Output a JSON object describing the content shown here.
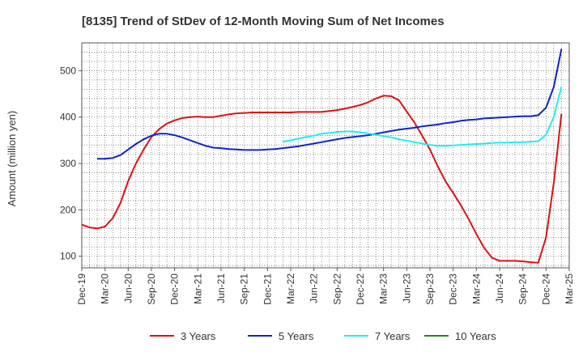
{
  "chart_data": {
    "type": "line",
    "title": "[8135]  Trend of StDev of 12-Month Moving Sum of Net Incomes",
    "xlabel": "",
    "ylabel": "Amount (million yen)",
    "ylim": [
      75,
      560
    ],
    "yticks": [
      100,
      200,
      300,
      400,
      500
    ],
    "x_start": "Dec-19",
    "xticks": [
      "Dec-19",
      "Mar-20",
      "Jun-20",
      "Sep-20",
      "Dec-20",
      "Mar-21",
      "Jun-21",
      "Sep-21",
      "Dec-21",
      "Mar-22",
      "Jun-22",
      "Sep-22",
      "Dec-22",
      "Mar-23",
      "Jun-23",
      "Sep-23",
      "Dec-23",
      "Mar-24",
      "Jun-24",
      "Sep-24",
      "Dec-24",
      "Mar-25"
    ],
    "grid": true,
    "legend_position": "bottom",
    "series": [
      {
        "name": "3 Years",
        "color": "#dd1111",
        "points": [
          [
            "Dec-19",
            168
          ],
          [
            "Jan-20",
            162
          ],
          [
            "Feb-20",
            160
          ],
          [
            "Mar-20",
            164
          ],
          [
            "Apr-20",
            182
          ],
          [
            "May-20",
            215
          ],
          [
            "Jun-20",
            262
          ],
          [
            "Jul-20",
            300
          ],
          [
            "Aug-20",
            330
          ],
          [
            "Sep-20",
            357
          ],
          [
            "Oct-20",
            374
          ],
          [
            "Nov-20",
            386
          ],
          [
            "Dec-20",
            393
          ],
          [
            "Jan-21",
            398
          ],
          [
            "Feb-21",
            400
          ],
          [
            "Mar-21",
            401
          ],
          [
            "Apr-21",
            400
          ],
          [
            "May-21",
            400
          ],
          [
            "Jun-21",
            403
          ],
          [
            "Jul-21",
            406
          ],
          [
            "Aug-21",
            408
          ],
          [
            "Sep-21",
            409
          ],
          [
            "Oct-21",
            410
          ],
          [
            "Nov-21",
            410
          ],
          [
            "Dec-21",
            410
          ],
          [
            "Jan-22",
            410
          ],
          [
            "Feb-22",
            410
          ],
          [
            "Mar-22",
            410
          ],
          [
            "Apr-22",
            411
          ],
          [
            "May-22",
            411
          ],
          [
            "Jun-22",
            411
          ],
          [
            "Jul-22",
            411
          ],
          [
            "Aug-22",
            413
          ],
          [
            "Sep-22",
            415
          ],
          [
            "Oct-22",
            418
          ],
          [
            "Nov-22",
            422
          ],
          [
            "Dec-22",
            426
          ],
          [
            "Jan-23",
            432
          ],
          [
            "Feb-23",
            440
          ],
          [
            "Mar-23",
            446
          ],
          [
            "Apr-23",
            445
          ],
          [
            "May-23",
            436
          ],
          [
            "Jun-23",
            412
          ],
          [
            "Jul-23",
            388
          ],
          [
            "Aug-23",
            360
          ],
          [
            "Sep-23",
            330
          ],
          [
            "Oct-23",
            294
          ],
          [
            "Nov-23",
            262
          ],
          [
            "Dec-23",
            236
          ],
          [
            "Jan-24",
            210
          ],
          [
            "Feb-24",
            180
          ],
          [
            "Mar-24",
            148
          ],
          [
            "Apr-24",
            118
          ],
          [
            "May-24",
            97
          ],
          [
            "Jun-24",
            90
          ],
          [
            "Jul-24",
            90
          ],
          [
            "Aug-24",
            90
          ],
          [
            "Sep-24",
            89
          ],
          [
            "Oct-24",
            87
          ],
          [
            "Nov-24",
            86
          ],
          [
            "Dec-24",
            140
          ],
          [
            "Jan-25",
            258
          ],
          [
            "Feb-25",
            407
          ]
        ]
      },
      {
        "name": "5 Years",
        "color": "#1122cc",
        "points": [
          [
            "Feb-20",
            310
          ],
          [
            "Mar-20",
            310
          ],
          [
            "Apr-20",
            312
          ],
          [
            "May-20",
            318
          ],
          [
            "Jun-20",
            330
          ],
          [
            "Jul-20",
            342
          ],
          [
            "Aug-20",
            352
          ],
          [
            "Sep-20",
            360
          ],
          [
            "Oct-20",
            364
          ],
          [
            "Nov-20",
            364
          ],
          [
            "Dec-20",
            361
          ],
          [
            "Jan-21",
            356
          ],
          [
            "Feb-21",
            350
          ],
          [
            "Mar-21",
            344
          ],
          [
            "Apr-21",
            338
          ],
          [
            "May-21",
            334
          ],
          [
            "Jun-21",
            333
          ],
          [
            "Jul-21",
            331
          ],
          [
            "Aug-21",
            330
          ],
          [
            "Sep-21",
            329
          ],
          [
            "Oct-21",
            329
          ],
          [
            "Nov-21",
            329
          ],
          [
            "Dec-21",
            330
          ],
          [
            "Jan-22",
            331
          ],
          [
            "Feb-22",
            333
          ],
          [
            "Mar-22",
            335
          ],
          [
            "Apr-22",
            337
          ],
          [
            "May-22",
            340
          ],
          [
            "Jun-22",
            343
          ],
          [
            "Jul-22",
            346
          ],
          [
            "Aug-22",
            349
          ],
          [
            "Sep-22",
            352
          ],
          [
            "Oct-22",
            355
          ],
          [
            "Nov-22",
            357
          ],
          [
            "Dec-22",
            359
          ],
          [
            "Jan-23",
            361
          ],
          [
            "Feb-23",
            364
          ],
          [
            "Mar-23",
            367
          ],
          [
            "Apr-23",
            370
          ],
          [
            "May-23",
            373
          ],
          [
            "Jun-23",
            375
          ],
          [
            "Jul-23",
            377
          ],
          [
            "Aug-23",
            380
          ],
          [
            "Sep-23",
            382
          ],
          [
            "Oct-23",
            384
          ],
          [
            "Nov-23",
            387
          ],
          [
            "Dec-23",
            389
          ],
          [
            "Jan-24",
            392
          ],
          [
            "Feb-24",
            394
          ],
          [
            "Mar-24",
            395
          ],
          [
            "Apr-24",
            397
          ],
          [
            "May-24",
            398
          ],
          [
            "Jun-24",
            399
          ],
          [
            "Jul-24",
            400
          ],
          [
            "Aug-24",
            401
          ],
          [
            "Sep-24",
            402
          ],
          [
            "Oct-24",
            402
          ],
          [
            "Nov-24",
            404
          ],
          [
            "Dec-24",
            420
          ],
          [
            "Jan-25",
            465
          ],
          [
            "Feb-25",
            547
          ]
        ]
      },
      {
        "name": "7 Years",
        "color": "#22eeee",
        "points": [
          [
            "Feb-22",
            347
          ],
          [
            "Mar-22",
            350
          ],
          [
            "Apr-22",
            354
          ],
          [
            "May-22",
            357
          ],
          [
            "Jun-22",
            360
          ],
          [
            "Jul-22",
            364
          ],
          [
            "Aug-22",
            366
          ],
          [
            "Sep-22",
            368
          ],
          [
            "Oct-22",
            369
          ],
          [
            "Nov-22",
            369
          ],
          [
            "Dec-22",
            367
          ],
          [
            "Jan-23",
            365
          ],
          [
            "Feb-23",
            362
          ],
          [
            "Mar-23",
            359
          ],
          [
            "Apr-23",
            356
          ],
          [
            "May-23",
            352
          ],
          [
            "Jun-23",
            349
          ],
          [
            "Jul-23",
            346
          ],
          [
            "Aug-23",
            343
          ],
          [
            "Sep-23",
            340
          ],
          [
            "Oct-23",
            338
          ],
          [
            "Nov-23",
            338
          ],
          [
            "Dec-23",
            339
          ],
          [
            "Jan-24",
            340
          ],
          [
            "Feb-24",
            341
          ],
          [
            "Mar-24",
            342
          ],
          [
            "Apr-24",
            343
          ],
          [
            "May-24",
            344
          ],
          [
            "Jun-24",
            345
          ],
          [
            "Jul-24",
            345
          ],
          [
            "Aug-24",
            346
          ],
          [
            "Sep-24",
            346
          ],
          [
            "Oct-24",
            347
          ],
          [
            "Nov-24",
            348
          ],
          [
            "Dec-24",
            362
          ],
          [
            "Jan-25",
            400
          ],
          [
            "Feb-25",
            466
          ]
        ]
      },
      {
        "name": "10 Years",
        "color": "#228822",
        "points": []
      }
    ]
  }
}
